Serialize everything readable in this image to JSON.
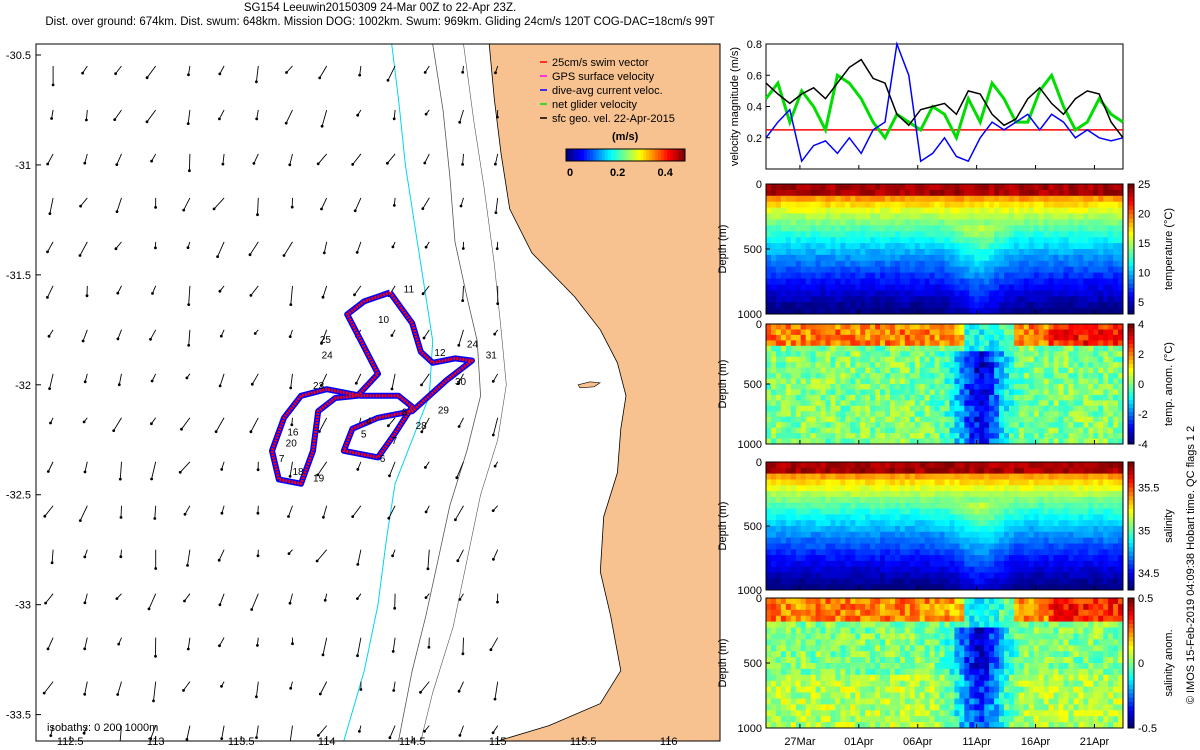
{
  "title_line1": "SG154 Leeuwin20150309 24-Mar 00Z to 22-Apr 23Z.",
  "title_line2": "Dist. over ground: 674km. Dist. swum: 648km. Mission DOG: 1002km. Swum: 969km. Gliding 24cm/s 120T COG-DAC=18cm/s 99T",
  "credit": "© IMOS 15-Feb-2019 04:09:38 Hobart time. QC flags 1  2",
  "colors": {
    "land": "#f7c28f",
    "glider_red": "#ff0000",
    "dac_blue": "#0000ff",
    "gps_magenta": "#ff00ff",
    "net_green": "#00dd00",
    "isobath": "#00d5f0"
  },
  "chart_data": [
    {
      "type": "map",
      "xlim": [
        112.3,
        116.3
      ],
      "ylim": [
        -33.62,
        -30.45
      ],
      "x_ticks": [
        "112.5",
        "113",
        "113.5",
        "114",
        "114.5",
        "115",
        "115.5",
        "116"
      ],
      "y_ticks": [
        "-30.5",
        "-31",
        "-31.5",
        "-32",
        "-32.5",
        "-33",
        "-33.5"
      ],
      "legend": [
        "25cm/s swim vector",
        "GPS surface velocity",
        "dive-avg current veloc.",
        "net glider velocity",
        "sfc geo. vel. 22-Apr-2015"
      ],
      "colorbar": {
        "label": "(m/s)",
        "range": [
          0,
          0.5
        ],
        "ticks": [
          "0",
          "0.2",
          "0.4"
        ]
      },
      "isobath_label": "isobaths: 0   200   1000m",
      "track_labels": [
        {
          "text": "11",
          "lon": 114.45,
          "lat": -31.58
        },
        {
          "text": "10",
          "lon": 114.3,
          "lat": -31.72
        },
        {
          "text": "25",
          "lon": 113.96,
          "lat": -31.81
        },
        {
          "text": "24",
          "lon": 113.97,
          "lat": -31.88
        },
        {
          "text": "12",
          "lon": 114.63,
          "lat": -31.87
        },
        {
          "text": "24",
          "lon": 114.82,
          "lat": -31.83
        },
        {
          "text": "31",
          "lon": 114.93,
          "lat": -31.88
        },
        {
          "text": "23",
          "lon": 113.92,
          "lat": -32.02
        },
        {
          "text": "30",
          "lon": 114.75,
          "lat": -32.0
        },
        {
          "text": "29",
          "lon": 114.65,
          "lat": -32.13
        },
        {
          "text": "8",
          "lon": 114.44,
          "lat": -32.14
        },
        {
          "text": "28",
          "lon": 114.52,
          "lat": -32.2
        },
        {
          "text": "4",
          "lon": 114.23,
          "lat": -32.18
        },
        {
          "text": "5",
          "lon": 114.2,
          "lat": -32.24
        },
        {
          "text": "7",
          "lon": 114.38,
          "lat": -32.27
        },
        {
          "text": "16",
          "lon": 113.77,
          "lat": -32.23
        },
        {
          "text": "20",
          "lon": 113.76,
          "lat": -32.28
        },
        {
          "text": "7",
          "lon": 113.72,
          "lat": -32.35
        },
        {
          "text": "6",
          "lon": 114.31,
          "lat": -32.35
        },
        {
          "text": "18",
          "lon": 113.8,
          "lat": -32.41
        },
        {
          "text": "19",
          "lon": 113.92,
          "lat": -32.44
        }
      ]
    },
    {
      "type": "line",
      "ylabel": "velocity magnitude (m/s)",
      "ylim": [
        0,
        0.8
      ],
      "y_ticks": [
        "0.2",
        "0.4",
        "0.6",
        "0.8"
      ],
      "xlim": [
        0,
        30
      ],
      "series": [
        {
          "name": "swim",
          "color": "#ff0000",
          "values": [
            0.25,
            0.25,
            0.25,
            0.25,
            0.25,
            0.25,
            0.25,
            0.25,
            0.25,
            0.25,
            0.25,
            0.25,
            0.25,
            0.25,
            0.25,
            0.25,
            0.25,
            0.25,
            0.25,
            0.25,
            0.25,
            0.25,
            0.25,
            0.25,
            0.25,
            0.25,
            0.25,
            0.25,
            0.25,
            0.25,
            0.25
          ]
        },
        {
          "name": "net",
          "color": "#00dd00",
          "values": [
            0.45,
            0.55,
            0.3,
            0.5,
            0.4,
            0.25,
            0.6,
            0.55,
            0.45,
            0.3,
            0.2,
            0.35,
            0.3,
            0.25,
            0.4,
            0.35,
            0.2,
            0.45,
            0.3,
            0.55,
            0.45,
            0.3,
            0.3,
            0.5,
            0.6,
            0.4,
            0.25,
            0.3,
            0.45,
            0.35,
            0.3
          ]
        },
        {
          "name": "dac",
          "color": "#0000ff",
          "values": [
            0.2,
            0.3,
            0.38,
            0.05,
            0.15,
            0.18,
            0.1,
            0.2,
            0.1,
            0.25,
            0.3,
            0.8,
            0.6,
            0.05,
            0.1,
            0.2,
            0.08,
            0.05,
            0.2,
            0.3,
            0.25,
            0.3,
            0.35,
            0.25,
            0.35,
            0.3,
            0.2,
            0.25,
            0.2,
            0.18,
            0.2
          ]
        },
        {
          "name": "sfc",
          "color": "#000000",
          "values": [
            0.55,
            0.48,
            0.42,
            0.48,
            0.52,
            0.45,
            0.55,
            0.65,
            0.7,
            0.58,
            0.55,
            0.35,
            0.28,
            0.38,
            0.4,
            0.42,
            0.35,
            0.5,
            0.48,
            0.35,
            0.28,
            0.32,
            0.45,
            0.52,
            0.42,
            0.35,
            0.45,
            0.5,
            0.48,
            0.3,
            0.2
          ]
        }
      ]
    },
    {
      "type": "heatmap",
      "variable": "temperature",
      "ylabel": "Depth (m)",
      "cbar_label": "temperature (°C)",
      "ylim": [
        1000,
        0
      ],
      "y_ticks": [
        "0",
        "500",
        "1000"
      ],
      "vmin": 3,
      "vmax": 25,
      "cbar_ticks": [
        "5",
        "10",
        "15",
        "20",
        "25"
      ]
    },
    {
      "type": "heatmap",
      "variable": "temp. anom.",
      "ylabel": "Depth (m)",
      "cbar_label": "temp. anom. (°C)",
      "ylim": [
        1000,
        0
      ],
      "y_ticks": [
        "0",
        "500",
        "1000"
      ],
      "vmin": -4,
      "vmax": 4,
      "cbar_ticks": [
        "4",
        "2",
        "0",
        "-2",
        "-4"
      ]
    },
    {
      "type": "heatmap",
      "variable": "salinity",
      "ylabel": "Depth (m)",
      "cbar_label": "salinity",
      "ylim": [
        1000,
        0
      ],
      "y_ticks": [
        "0",
        "500",
        "1000"
      ],
      "vmin": 34.3,
      "vmax": 35.8,
      "cbar_ticks": [
        "35.5",
        "35",
        "34.5"
      ]
    },
    {
      "type": "heatmap",
      "variable": "salinity anom.",
      "ylabel": "Depth (m)",
      "cbar_label": "salinity anom.",
      "ylim": [
        1000,
        0
      ],
      "y_ticks": [
        "0",
        "500",
        "1000"
      ],
      "vmin": -0.5,
      "vmax": 0.5,
      "cbar_ticks": [
        "0.5",
        "0",
        "-0.5"
      ],
      "x_ticks": [
        "27Mar",
        "01Apr",
        "06Apr",
        "11Apr",
        "16Apr",
        "21Apr"
      ]
    }
  ]
}
